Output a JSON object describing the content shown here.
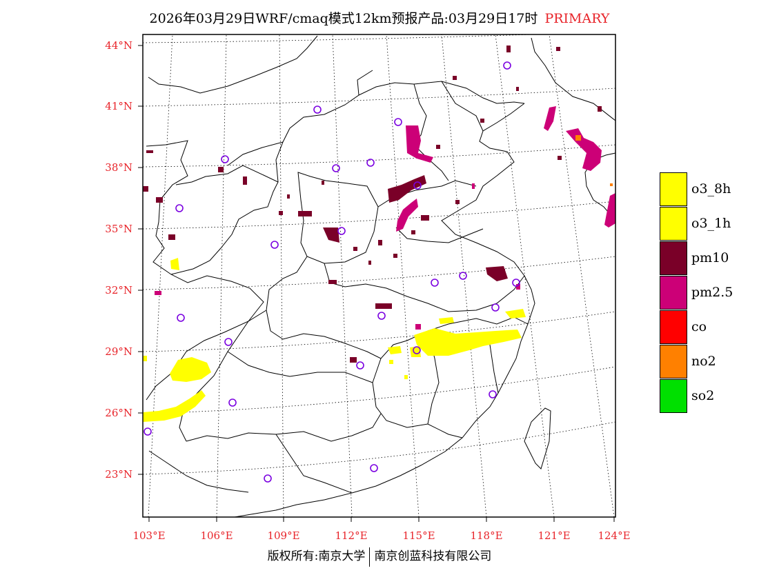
{
  "header": {
    "title": "2026年03月29日WRF/cmaq模式12km预报产品:03月29日17时",
    "pollutant_mode": "PRIMARY"
  },
  "axes": {
    "lat_labels": [
      "44°N",
      "41°N",
      "38°N",
      "35°N",
      "32°N",
      "29°N",
      "26°N",
      "23°N"
    ],
    "lon_labels": [
      "103°E",
      "106°E",
      "109°E",
      "112°E",
      "115°E",
      "118°E",
      "121°E",
      "124°E"
    ]
  },
  "legend": {
    "items": [
      {
        "label": "o3_8h",
        "color": "#ffff00"
      },
      {
        "label": "o3_1h",
        "color": "#ffff00"
      },
      {
        "label": "pm10",
        "color": "#7a0028"
      },
      {
        "label": "pm2.5",
        "color": "#cc0077"
      },
      {
        "label": "co",
        "color": "#ff0000"
      },
      {
        "label": "no2",
        "color": "#ff8000"
      },
      {
        "label": "so2",
        "color": "#00e000"
      }
    ]
  },
  "footer": {
    "copyright": "版权所有:南京大学",
    "company": "南京创蓝科技有限公司"
  }
}
